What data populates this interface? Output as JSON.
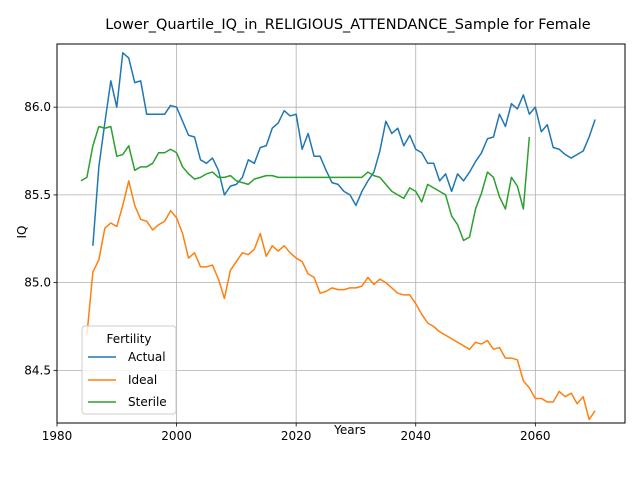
{
  "chart_data": {
    "type": "line",
    "title": "Lower_Quartile_IQ_in_RELIGIOUS_ATTENDANCE_Sample for Female",
    "xlabel": "Years",
    "ylabel": "IQ",
    "xlim": [
      1980,
      2075
    ],
    "ylim": [
      84.2,
      86.36
    ],
    "xticks": [
      1980,
      2000,
      2020,
      2040,
      2060
    ],
    "yticks": [
      84.5,
      85.0,
      85.5,
      86.0
    ],
    "ytick_labels": [
      "84.5",
      "85.0",
      "85.5",
      "86.0"
    ],
    "grid": true,
    "legend": {
      "title": "Fertility",
      "position": "lower-left"
    },
    "series": [
      {
        "name": "Actual",
        "color": "#1f77b4",
        "x": [
          1986,
          1987,
          1988,
          1989,
          1990,
          1991,
          1992,
          1993,
          1994,
          1995,
          1996,
          1997,
          1998,
          1999,
          2000,
          2001,
          2002,
          2003,
          2004,
          2005,
          2006,
          2007,
          2008,
          2009,
          2010,
          2011,
          2012,
          2013,
          2014,
          2015,
          2016,
          2017,
          2018,
          2019,
          2020,
          2021,
          2022,
          2023,
          2024,
          2025,
          2026,
          2027,
          2028,
          2029,
          2030,
          2031,
          2032,
          2033,
          2034,
          2035,
          2036,
          2037,
          2038,
          2039,
          2040,
          2041,
          2042,
          2043,
          2044,
          2045,
          2046,
          2047,
          2048,
          2049,
          2050,
          2051,
          2052,
          2053,
          2054,
          2055,
          2056,
          2057,
          2058,
          2059,
          2060,
          2061,
          2062,
          2063,
          2064,
          2065,
          2066,
          2067,
          2068,
          2069,
          2070
        ],
        "values": [
          85.21,
          85.66,
          85.91,
          86.15,
          86.0,
          86.31,
          86.28,
          86.14,
          86.15,
          85.96,
          85.96,
          85.96,
          85.96,
          86.01,
          86.0,
          85.92,
          85.84,
          85.83,
          85.7,
          85.68,
          85.71,
          85.64,
          85.5,
          85.55,
          85.56,
          85.6,
          85.7,
          85.68,
          85.77,
          85.78,
          85.88,
          85.91,
          85.98,
          85.95,
          85.96,
          85.76,
          85.85,
          85.72,
          85.72,
          85.64,
          85.57,
          85.56,
          85.52,
          85.5,
          85.44,
          85.52,
          85.58,
          85.63,
          85.75,
          85.92,
          85.85,
          85.88,
          85.78,
          85.84,
          85.76,
          85.74,
          85.68,
          85.68,
          85.58,
          85.62,
          85.52,
          85.62,
          85.58,
          85.63,
          85.69,
          85.74,
          85.82,
          85.83,
          85.96,
          85.89,
          86.02,
          85.99,
          86.07,
          85.96,
          86.0,
          85.86,
          85.9,
          85.77,
          85.76,
          85.73,
          85.71,
          85.73,
          85.75,
          85.83,
          85.93
        ]
      },
      {
        "name": "Ideal",
        "color": "#ff7f0e",
        "x": [
          1985,
          1986,
          1987,
          1988,
          1989,
          1990,
          1991,
          1992,
          1993,
          1994,
          1995,
          1996,
          1997,
          1998,
          1999,
          2000,
          2001,
          2002,
          2003,
          2004,
          2005,
          2006,
          2007,
          2008,
          2009,
          2010,
          2011,
          2012,
          2013,
          2014,
          2015,
          2016,
          2017,
          2018,
          2019,
          2020,
          2021,
          2022,
          2023,
          2024,
          2025,
          2026,
          2027,
          2028,
          2029,
          2030,
          2031,
          2032,
          2033,
          2034,
          2035,
          2036,
          2037,
          2038,
          2039,
          2040,
          2041,
          2042,
          2043,
          2044,
          2045,
          2046,
          2047,
          2048,
          2049,
          2050,
          2051,
          2052,
          2053,
          2054,
          2055,
          2056,
          2057,
          2058,
          2059,
          2060,
          2061,
          2062,
          2063,
          2064,
          2065,
          2066,
          2067,
          2068,
          2069,
          2070
        ],
        "values": [
          84.7,
          85.06,
          85.13,
          85.31,
          85.34,
          85.32,
          85.44,
          85.58,
          85.44,
          85.36,
          85.35,
          85.3,
          85.33,
          85.35,
          85.41,
          85.37,
          85.28,
          85.14,
          85.17,
          85.09,
          85.09,
          85.1,
          85.02,
          84.91,
          85.07,
          85.12,
          85.17,
          85.16,
          85.19,
          85.28,
          85.15,
          85.21,
          85.18,
          85.21,
          85.17,
          85.14,
          85.12,
          85.05,
          85.03,
          84.94,
          84.95,
          84.97,
          84.96,
          84.96,
          84.97,
          84.97,
          84.98,
          85.03,
          84.99,
          85.02,
          85.0,
          84.97,
          84.94,
          84.93,
          84.93,
          84.88,
          84.82,
          84.77,
          84.75,
          84.72,
          84.7,
          84.68,
          84.66,
          84.64,
          84.62,
          84.66,
          84.65,
          84.67,
          84.62,
          84.63,
          84.57,
          84.57,
          84.56,
          84.44,
          84.4,
          84.34,
          84.34,
          84.32,
          84.32,
          84.38,
          84.35,
          84.37,
          84.31,
          84.35,
          84.22,
          84.27
        ]
      },
      {
        "name": "Sterile",
        "color": "#2ca02c",
        "x": [
          1984,
          1985,
          1986,
          1987,
          1988,
          1989,
          1990,
          1991,
          1992,
          1993,
          1994,
          1995,
          1996,
          1997,
          1998,
          1999,
          2000,
          2001,
          2002,
          2003,
          2004,
          2005,
          2006,
          2007,
          2008,
          2009,
          2010,
          2011,
          2012,
          2013,
          2014,
          2015,
          2016,
          2017,
          2018,
          2019,
          2020,
          2021,
          2022,
          2023,
          2024,
          2025,
          2026,
          2027,
          2028,
          2029,
          2030,
          2031,
          2032,
          2033,
          2034,
          2035,
          2036,
          2037,
          2038,
          2039,
          2040,
          2041,
          2042,
          2043,
          2044,
          2045,
          2046,
          2047,
          2048,
          2049,
          2050,
          2051,
          2052,
          2053,
          2054,
          2055,
          2056,
          2057,
          2058,
          2059
        ],
        "values": [
          85.58,
          85.6,
          85.78,
          85.89,
          85.88,
          85.89,
          85.72,
          85.73,
          85.78,
          85.64,
          85.66,
          85.66,
          85.68,
          85.74,
          85.74,
          85.76,
          85.74,
          85.66,
          85.62,
          85.59,
          85.6,
          85.62,
          85.63,
          85.6,
          85.6,
          85.61,
          85.58,
          85.57,
          85.56,
          85.59,
          85.6,
          85.61,
          85.61,
          85.6,
          85.6,
          85.6,
          85.6,
          85.6,
          85.6,
          85.6,
          85.6,
          85.6,
          85.6,
          85.6,
          85.6,
          85.6,
          85.6,
          85.6,
          85.63,
          85.61,
          85.6,
          85.56,
          85.52,
          85.5,
          85.48,
          85.54,
          85.52,
          85.46,
          85.56,
          85.54,
          85.52,
          85.5,
          85.38,
          85.33,
          85.24,
          85.26,
          85.42,
          85.51,
          85.63,
          85.6,
          85.49,
          85.42,
          85.6,
          85.55,
          85.42,
          85.83
        ]
      }
    ]
  }
}
